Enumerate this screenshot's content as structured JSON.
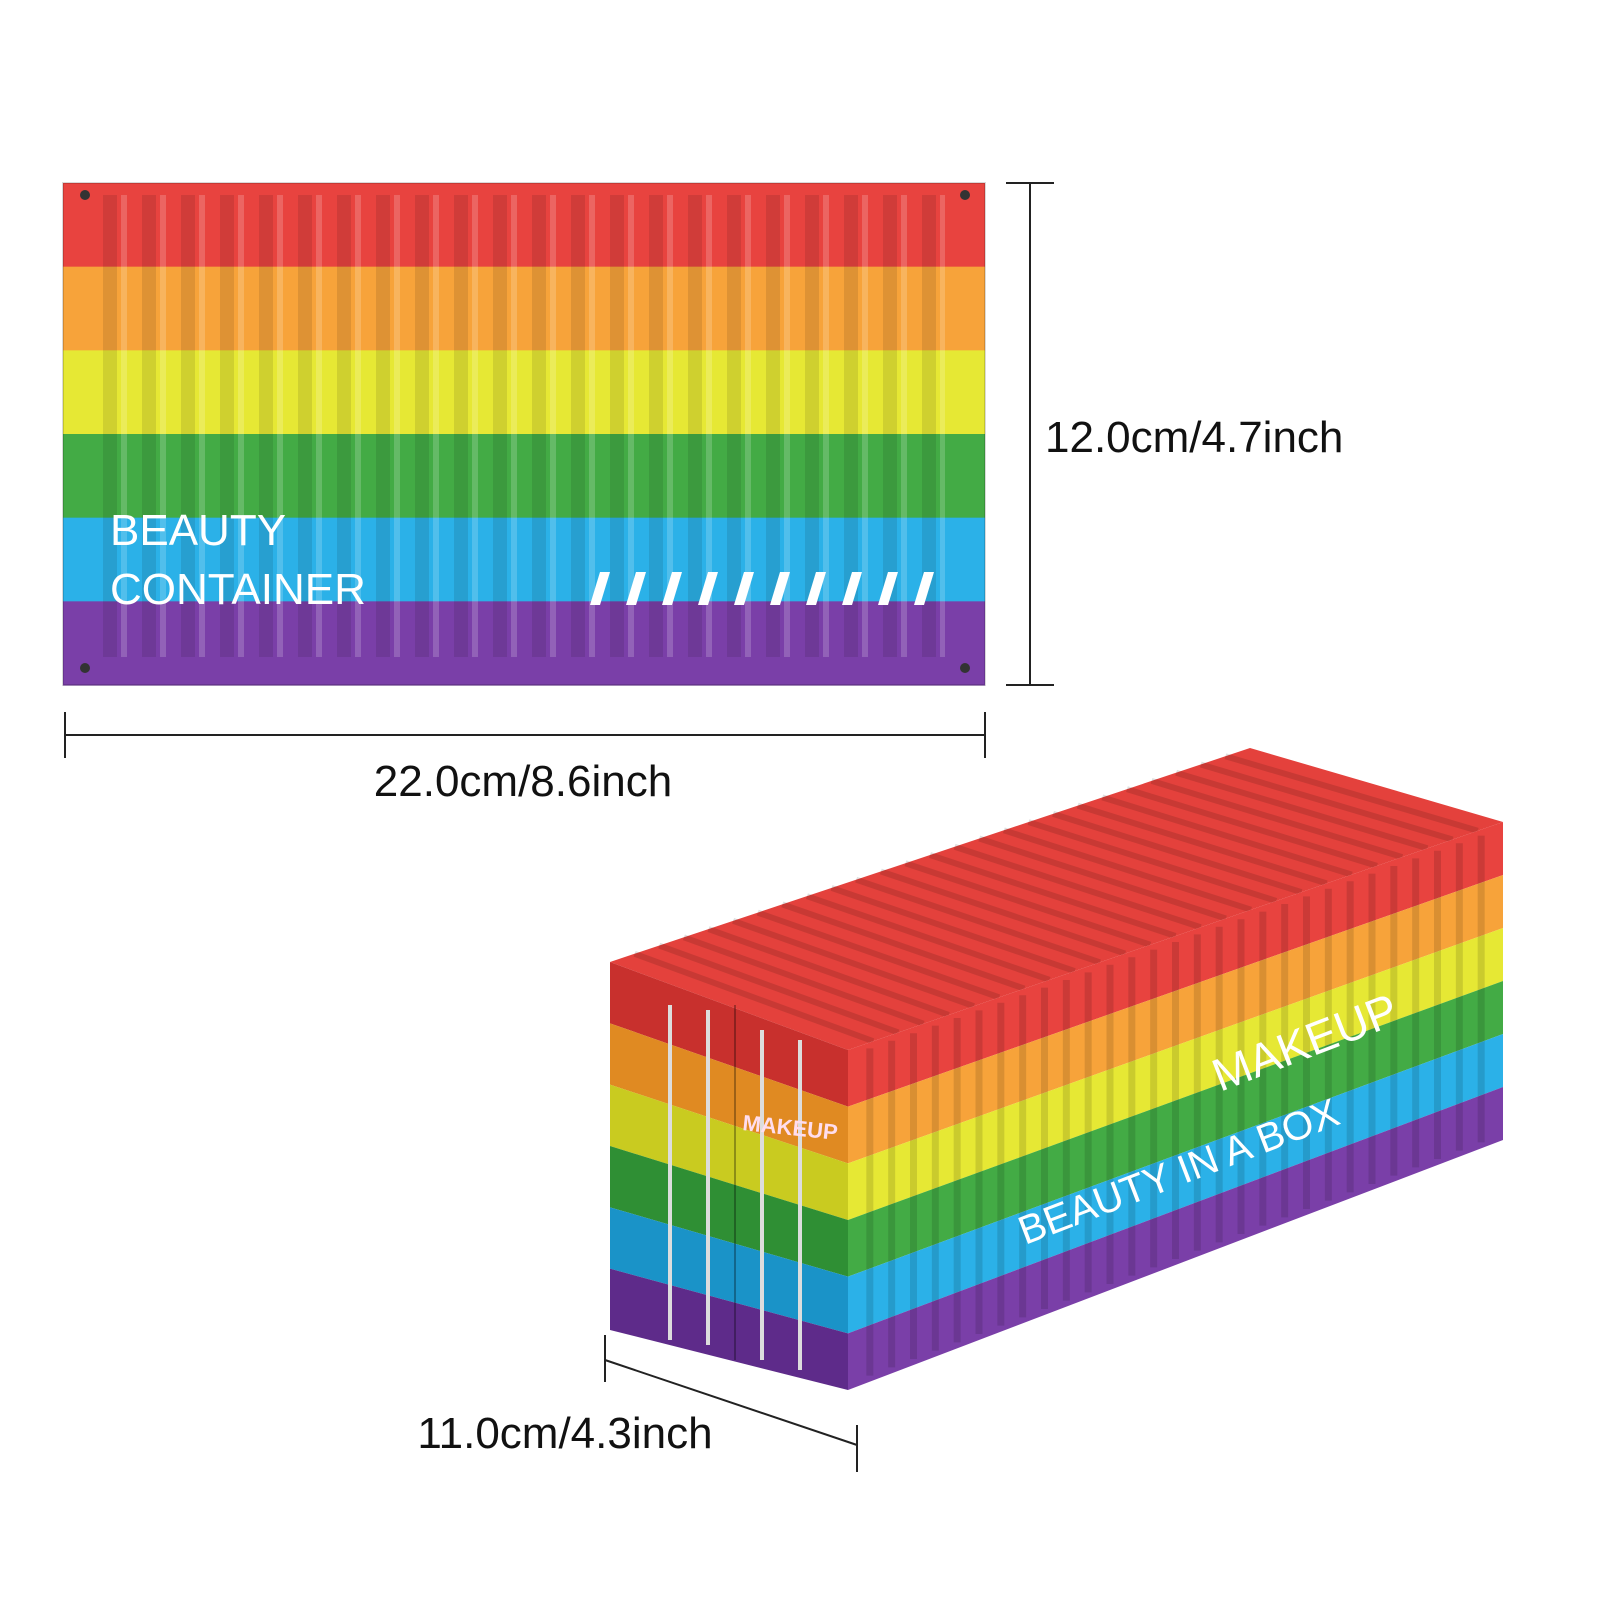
{
  "dimensions": {
    "height": "12.0cm/4.7inch",
    "width": "22.0cm/8.6inch",
    "depth": "11.0cm/4.3inch"
  },
  "front_container": {
    "lines": [
      "BEAUTY",
      "CONTAINER"
    ]
  },
  "perspective_container": {
    "side_lines": [
      "MAKEUP",
      "BEAUTY IN A BOX"
    ],
    "door_text": "MAKEUP"
  }
}
